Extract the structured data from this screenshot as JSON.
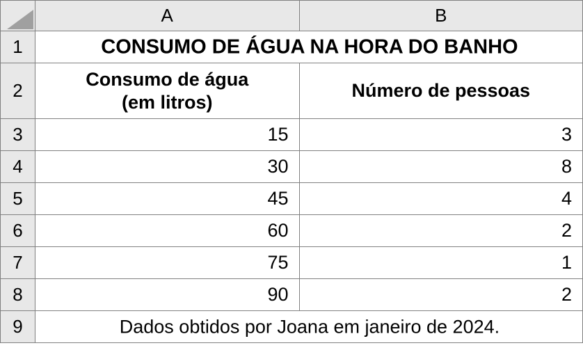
{
  "columns": {
    "a": "A",
    "b": "B"
  },
  "row_numbers": [
    "1",
    "2",
    "3",
    "4",
    "5",
    "6",
    "7",
    "8",
    "9"
  ],
  "title": "CONSUMO DE ÁGUA NA HORA DO BANHO",
  "headers": {
    "col_a": "Consumo de água\n(em litros)",
    "col_b": "Número de pessoas"
  },
  "table": {
    "type": "spreadsheet-table",
    "columns": [
      "Consumo de água (em litros)",
      "Número de pessoas"
    ],
    "rows": [
      [
        "15",
        "3"
      ],
      [
        "30",
        "8"
      ],
      [
        "45",
        "4"
      ],
      [
        "60",
        "2"
      ],
      [
        "75",
        "1"
      ],
      [
        "90",
        "2"
      ]
    ]
  },
  "footer": "Dados obtidos por Joana em janeiro de 2024.",
  "colors": {
    "header_bg": "#e8e8e8",
    "cell_bg": "#ffffff",
    "border": "#808080",
    "text": "#000000",
    "corner_triangle": "#a0a0a0"
  },
  "typography": {
    "title_fontsize": 29,
    "title_weight": "bold",
    "subheader_fontsize": 27,
    "subheader_weight": "bold",
    "data_fontsize": 27,
    "header_fontsize": 26,
    "footer_fontsize": 27,
    "font_family": "Arial"
  },
  "layout": {
    "total_width": 838,
    "total_height": 513,
    "row_header_width": 50,
    "col_a_width": 380,
    "col_b_width": 408
  }
}
